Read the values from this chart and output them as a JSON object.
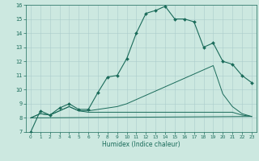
{
  "title": "",
  "xlabel": "Humidex (Indice chaleur)",
  "background_color": "#cce8e0",
  "grid_color": "#aacccc",
  "line_color": "#1a6b5a",
  "xlim": [
    -0.5,
    23.5
  ],
  "ylim": [
    7,
    16
  ],
  "xticks": [
    0,
    1,
    2,
    3,
    4,
    5,
    6,
    7,
    8,
    9,
    10,
    11,
    12,
    13,
    14,
    15,
    16,
    17,
    18,
    19,
    20,
    21,
    22,
    23
  ],
  "yticks": [
    7,
    8,
    9,
    10,
    11,
    12,
    13,
    14,
    15,
    16
  ],
  "line_main_x": [
    0,
    1,
    2,
    3,
    4,
    5,
    6,
    7,
    8,
    9,
    10,
    11,
    12,
    13,
    14,
    15,
    16,
    17,
    18,
    19,
    20,
    21,
    22,
    23
  ],
  "line_main_y": [
    7.0,
    8.5,
    8.2,
    8.7,
    9.0,
    8.6,
    8.6,
    9.8,
    10.9,
    11.0,
    12.2,
    14.0,
    15.4,
    15.6,
    15.9,
    15.0,
    15.0,
    14.8,
    13.0,
    13.3,
    12.0,
    11.8,
    11.0,
    10.5
  ],
  "line2_x": [
    0,
    1,
    2,
    3,
    4,
    5,
    6,
    7,
    8,
    9,
    10,
    11,
    12,
    13,
    14,
    15,
    16,
    17,
    18,
    19,
    20,
    21,
    22,
    23
  ],
  "line2_y": [
    8.0,
    8.3,
    8.2,
    8.5,
    8.8,
    8.5,
    8.5,
    8.6,
    8.7,
    8.8,
    9.0,
    9.3,
    9.6,
    9.9,
    10.2,
    10.5,
    10.8,
    11.1,
    11.4,
    11.7,
    9.7,
    8.8,
    8.3,
    8.1
  ],
  "line3_x": [
    0,
    1,
    2,
    3,
    4,
    5,
    6,
    7,
    8,
    9,
    10,
    11,
    12,
    13,
    14,
    15,
    16,
    17,
    18,
    19,
    20,
    21,
    22,
    23
  ],
  "line3_y": [
    8.0,
    8.3,
    8.2,
    8.5,
    8.8,
    8.5,
    8.4,
    8.4,
    8.4,
    8.4,
    8.4,
    8.4,
    8.4,
    8.4,
    8.4,
    8.4,
    8.4,
    8.4,
    8.4,
    8.4,
    8.4,
    8.4,
    8.2,
    8.1
  ],
  "line4_x": [
    0,
    23
  ],
  "line4_y": [
    8.0,
    8.1
  ]
}
